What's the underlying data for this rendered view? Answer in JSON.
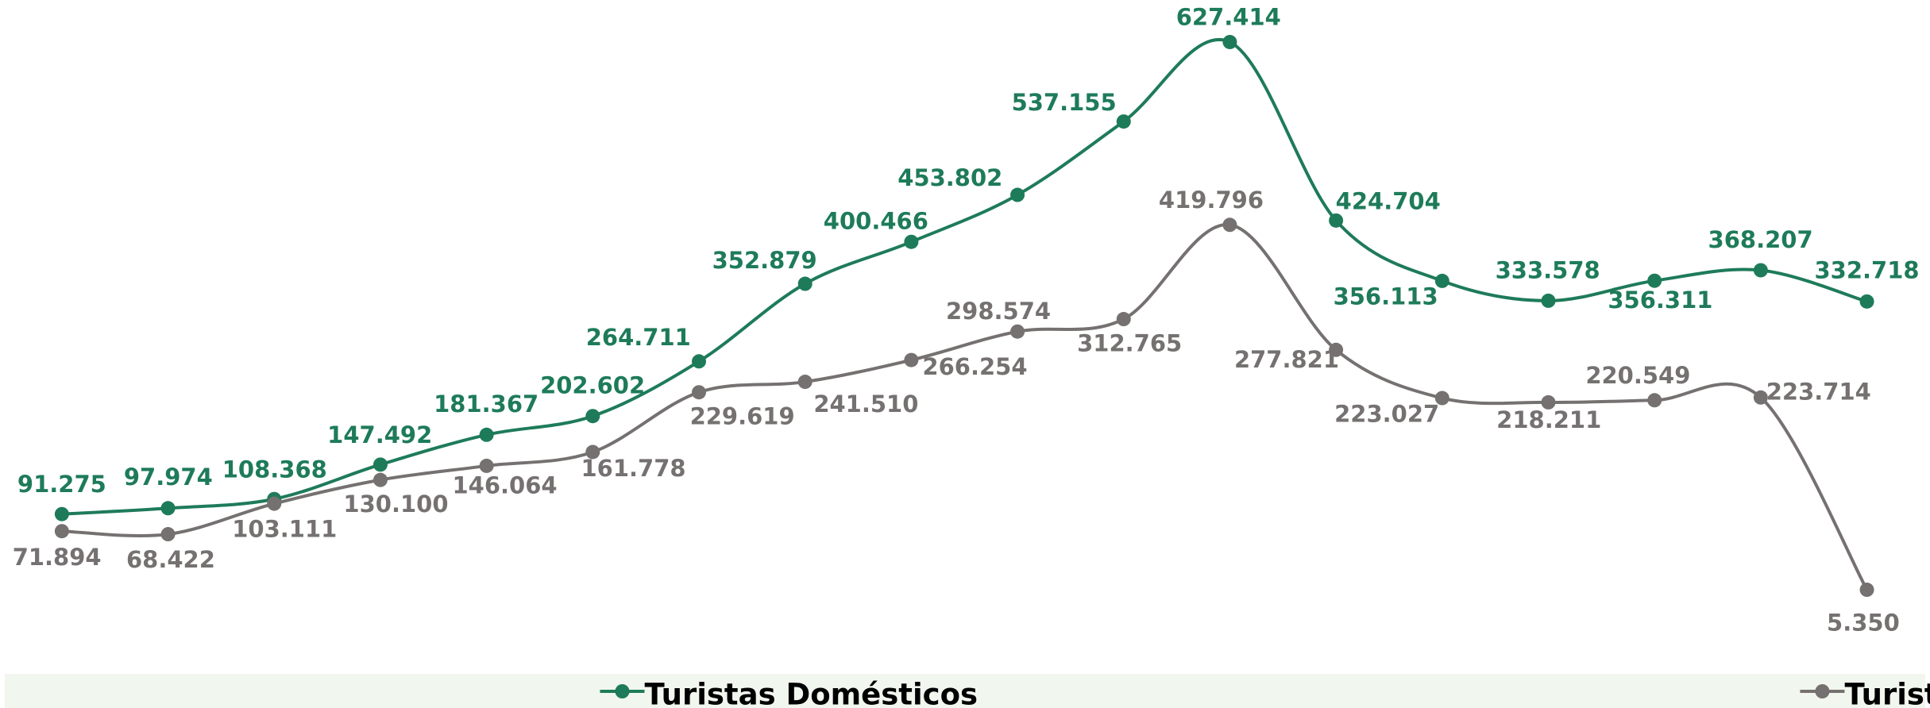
{
  "chart_data": {
    "type": "line",
    "categories": [
      null,
      null,
      null,
      null,
      null,
      null,
      null,
      null,
      null,
      null,
      null,
      null,
      null,
      null,
      null,
      null,
      null,
      null
    ],
    "series": [
      {
        "name": "Turistas Domésticos",
        "color": "#1e7b5a",
        "values": [
          91275,
          97974,
          108368,
          147492,
          181367,
          202602,
          264711,
          352879,
          400466,
          453802,
          537155,
          627414,
          424704,
          356113,
          333578,
          356311,
          368207,
          332718
        ],
        "value_labels": [
          "91.275",
          "97.974",
          "108.368",
          "147.492",
          "181.367",
          "202.602",
          "264.711",
          "352.879",
          "400.466",
          "453.802",
          "537.155",
          "627.414",
          "424.704",
          "356.113",
          "333.578",
          "356.311",
          "368.207",
          "332.718"
        ]
      },
      {
        "name": "Turistas Estrangeiros",
        "color": "#767171",
        "values": [
          71894,
          68422,
          103111,
          130100,
          146064,
          161778,
          229619,
          241510,
          266254,
          298574,
          312765,
          419796,
          277821,
          223027,
          218211,
          220549,
          223714,
          5350
        ],
        "value_labels": [
          "71.894",
          "68.422",
          "103.111",
          "130.100",
          "146.064",
          "161.778",
          "229.619",
          "241.510",
          "266.254",
          "298.574",
          "312.765",
          "419.796",
          "277.821",
          "223.027",
          "218.211",
          "220.549",
          "223.714",
          "5.350"
        ]
      }
    ],
    "legend": "bottom"
  }
}
